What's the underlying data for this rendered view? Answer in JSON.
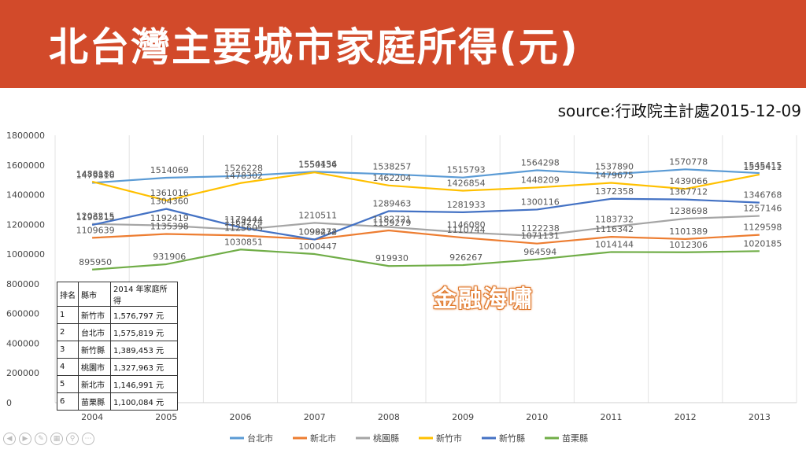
{
  "header": {
    "title": "北台灣主要城市家庭所得(元)"
  },
  "source": "source:行政院主計處2015-12-09",
  "watermark": "金融海嘯",
  "table": {
    "headers": [
      "排名",
      "縣市",
      "2014 年家庭所得"
    ],
    "rows": [
      [
        "1",
        "新竹市",
        "1,576,797 元"
      ],
      [
        "2",
        "台北市",
        "1,575,819 元"
      ],
      [
        "3",
        "新竹縣",
        "1,389,453 元"
      ],
      [
        "4",
        "桃園市",
        "1,327,963 元"
      ],
      [
        "5",
        "新北市",
        "1,146,991 元"
      ],
      [
        "6",
        "苗栗縣",
        "1,100,084 元"
      ]
    ]
  },
  "chart_data": {
    "type": "line",
    "x": [
      "2004",
      "2005",
      "2006",
      "2007",
      "2008",
      "2009",
      "2010",
      "2011",
      "2012",
      "2013"
    ],
    "ylim": [
      0,
      1800000
    ],
    "yticks": [
      0,
      200000,
      400000,
      600000,
      800000,
      1000000,
      1200000,
      1400000,
      1600000,
      1800000
    ],
    "grid": "vertical",
    "legend": "bottom",
    "series": [
      {
        "name": "台北市",
        "color": "#5b9bd5",
        "values": [
          1479816,
          1514069,
          1526228,
          1554456,
          1538257,
          1515793,
          1564298,
          1537890,
          1570778,
          1545415
        ]
      },
      {
        "name": "新北市",
        "color": "#ed7d31",
        "values": [
          1109639,
          1135398,
          1125605,
          1099472,
          1159279,
          1110744,
          1071131,
          1116342,
          1101389,
          1129598
        ]
      },
      {
        "name": "桃園縣",
        "color": "#a5a5a5",
        "values": [
          1203215,
          1192419,
          1164274,
          1210511,
          1182721,
          1146080,
          1122238,
          1183732,
          1238698,
          1257146
        ]
      },
      {
        "name": "新竹市",
        "color": "#ffc000",
        "values": [
          1488180,
          1361016,
          1478302,
          1550134,
          1462204,
          1426854,
          1448209,
          1479675,
          1439066,
          1535411
        ]
      },
      {
        "name": "新竹縣",
        "color": "#4472c4",
        "values": [
          1196515,
          1304360,
          1179444,
          1098234,
          1289463,
          1281933,
          1300116,
          1372358,
          1367712,
          1346768
        ]
      },
      {
        "name": "苗栗縣",
        "color": "#70ad47",
        "values": [
          895950,
          931906,
          1030851,
          1000447,
          919930,
          926267,
          964594,
          1014144,
          1012306,
          1020185
        ]
      }
    ]
  }
}
